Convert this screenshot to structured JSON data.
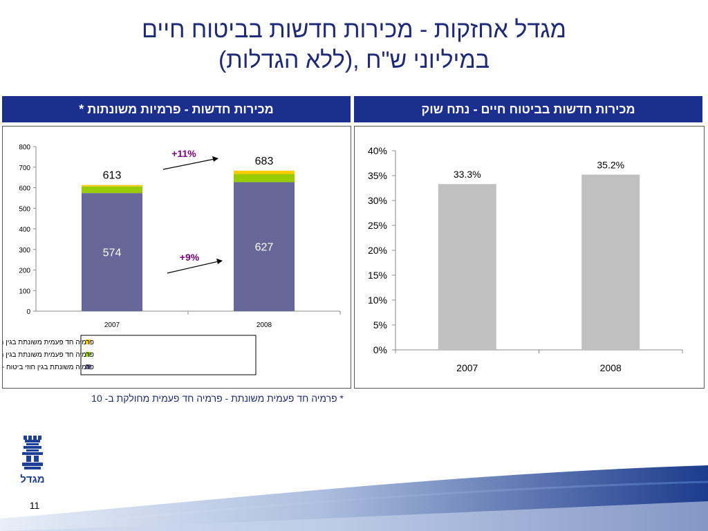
{
  "title": {
    "line1": "מגדל אחזקות - מכירות חדשות בביטוח חיים",
    "line2": "(ללא הגדלות), במיליוני ש\"ח"
  },
  "left_panel": {
    "header": "מכירות חדשות - פרמיות משונתות *",
    "growth_top": "+11%",
    "growth_bottom": "+9%"
  },
  "right_panel": {
    "header": "מכירות חדשות בביטוח חיים  - נתח שוק"
  },
  "footnote": "* פרמיה חד פעמית משונתת - פרמיה חד פעמית מחולקת ב- 10",
  "page_number": "11",
  "logo_text": "מגדל",
  "chart_data": [
    {
      "type": "bar",
      "stacked": true,
      "categories": [
        "2007",
        "2008"
      ],
      "ylim": [
        0,
        800
      ],
      "yticks": [
        "0",
        "100",
        "200",
        "300",
        "400",
        "500",
        "600",
        "700",
        "800"
      ],
      "series": [
        {
          "name": "פרמיה משונתת בגין חוזי ביטוח - עסק חדש",
          "values": [
            574,
            627
          ],
          "color": "#666699"
        },
        {
          "name": "פרמיה חד פעמית משונתת בגין חוזי ביטוח",
          "values": [
            32,
            40
          ],
          "color": "#99cc00"
        },
        {
          "name": "פרמיה חד פעמית משונתת בגין חוזי השקעה",
          "values": [
            7,
            16
          ],
          "color": "#ffcc00"
        }
      ],
      "totals": [
        "613",
        "683"
      ],
      "bottom_labels": [
        "574",
        "627"
      ],
      "grid": false,
      "legend_position": "bottom"
    },
    {
      "type": "bar",
      "categories": [
        "2007",
        "2008"
      ],
      "values": [
        33.3,
        35.2
      ],
      "value_labels": [
        "33.3%",
        "35.2%"
      ],
      "ylim": [
        0,
        40
      ],
      "yticks": [
        "0%",
        "5%",
        "10%",
        "15%",
        "20%",
        "25%",
        "30%",
        "35%",
        "40%"
      ],
      "color": "#c0c0c0",
      "grid": false
    }
  ]
}
